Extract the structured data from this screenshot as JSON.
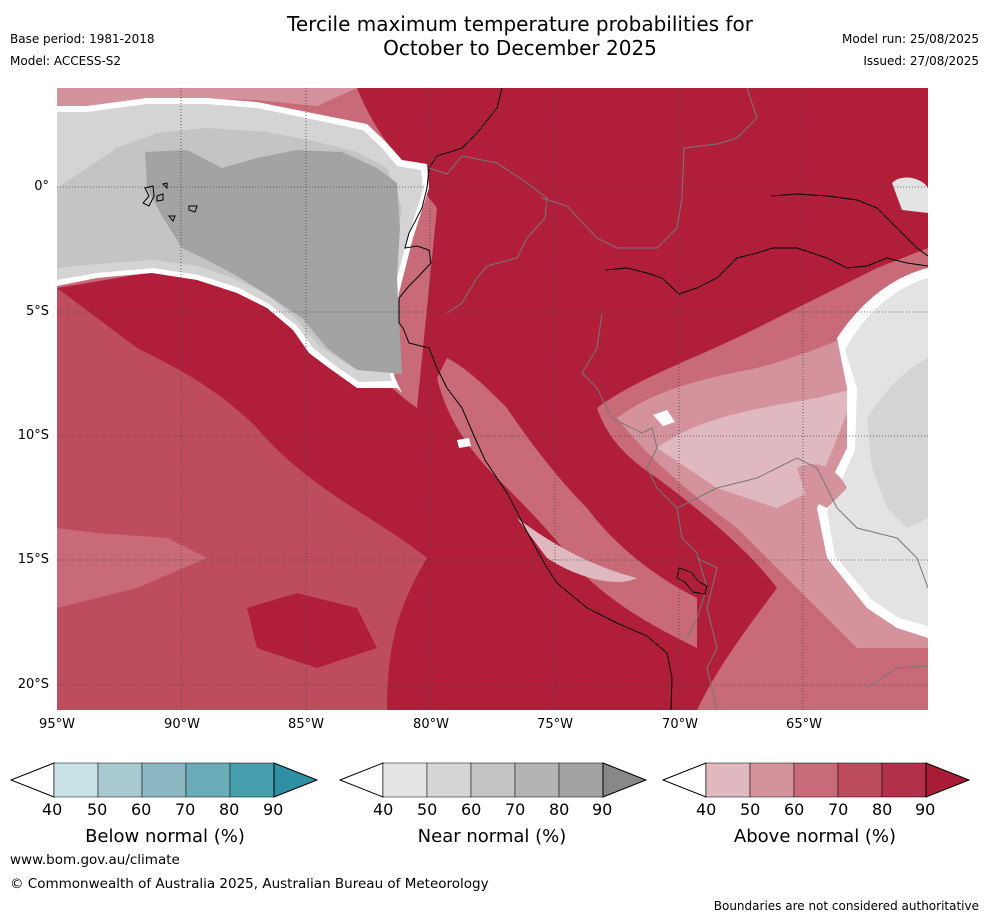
{
  "header": {
    "title_line1": "Tercile maximum temperature probabilities for",
    "title_line2": "October to December 2025",
    "base_period": "Base period: 1981-2018",
    "model": "Model: ACCESS-S2",
    "model_run": "Model run: 25/08/2025",
    "issued": "Issued: 27/08/2025"
  },
  "map": {
    "lat_labels": [
      "0°",
      "5°S",
      "10°S",
      "15°S",
      "20°S"
    ],
    "lon_labels": [
      "95°W",
      "90°W",
      "85°W",
      "80°W",
      "75°W",
      "70°W",
      "65°W"
    ],
    "colors": {
      "above_40_50": "#e0b8bf",
      "above_50_60": "#d4939c",
      "above_60_70": "#c86a77",
      "above_70_80": "#bd4d5d",
      "above_80_90": "#b01e3a",
      "near_40_50": "#e3e3e3",
      "near_50_60": "#d4d4d4",
      "near_60_70": "#c4c4c4",
      "near_80_90": "#a3a3a3"
    }
  },
  "colorbars": [
    {
      "label": "Below normal (%)",
      "ticks": [
        "40",
        "50",
        "60",
        "70",
        "80",
        "90"
      ],
      "colors": [
        "#c8e2e6",
        "#a7c9cf",
        "#8ab7c1",
        "#6aacb7",
        "#479fae",
        "#2f8fa3"
      ]
    },
    {
      "label": "Near normal (%)",
      "ticks": [
        "40",
        "50",
        "60",
        "70",
        "80",
        "90"
      ],
      "colors": [
        "#e4e4e4",
        "#d5d5d5",
        "#c4c4c4",
        "#b4b4b4",
        "#a2a2a2",
        "#888888"
      ]
    },
    {
      "label": "Above normal (%)",
      "ticks": [
        "40",
        "50",
        "60",
        "70",
        "80",
        "90"
      ],
      "colors": [
        "#e0b8bf",
        "#d4939c",
        "#c86a77",
        "#bd4d5d",
        "#b2304a",
        "#a91c35"
      ]
    }
  ],
  "footer": {
    "website": "www.bom.gov.au/climate",
    "copyright": "© Commonwealth of Australia 2025, Australian Bureau of Meteorology",
    "disclaimer": "Boundaries are not considered authoritative"
  }
}
